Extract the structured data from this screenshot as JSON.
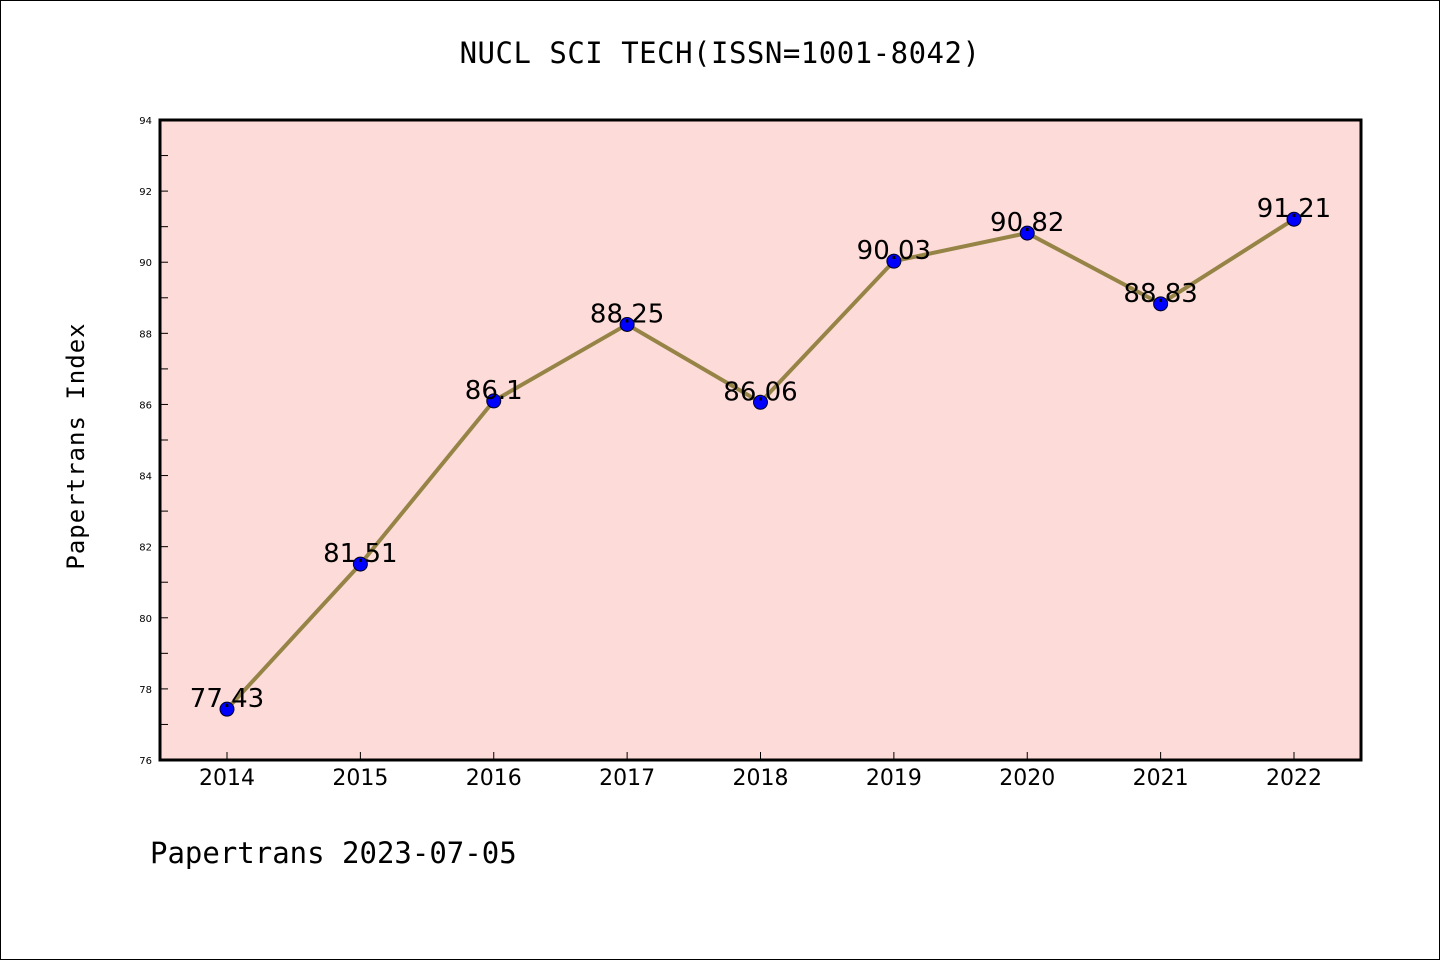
{
  "title": "NUCL SCI TECH(ISSN=1001-8042)",
  "footer_text": "Papertrans 2023-07-05",
  "colors": {
    "plot_background": "#fddbd8",
    "line": "#968447",
    "marker": "#0000ff"
  },
  "chart_data": {
    "type": "line",
    "title": "NUCL SCI TECH(ISSN=1001-8042)",
    "xlabel": "",
    "ylabel": "Papertrans Index",
    "categories": [
      "2014",
      "2015",
      "2016",
      "2017",
      "2018",
      "2019",
      "2020",
      "2021",
      "2022"
    ],
    "values": [
      77.43,
      81.51,
      86.1,
      88.25,
      86.06,
      90.03,
      90.82,
      88.83,
      91.21
    ],
    "data_labels": [
      "77.43",
      "81.51",
      "86.1",
      "88.25",
      "86.06",
      "90.03",
      "90.82",
      "88.83",
      "91.21"
    ],
    "ylim": [
      76,
      94
    ],
    "yticks": [
      76,
      78,
      80,
      82,
      84,
      86,
      88,
      90,
      92,
      94
    ],
    "grid": false,
    "legend": "none"
  }
}
